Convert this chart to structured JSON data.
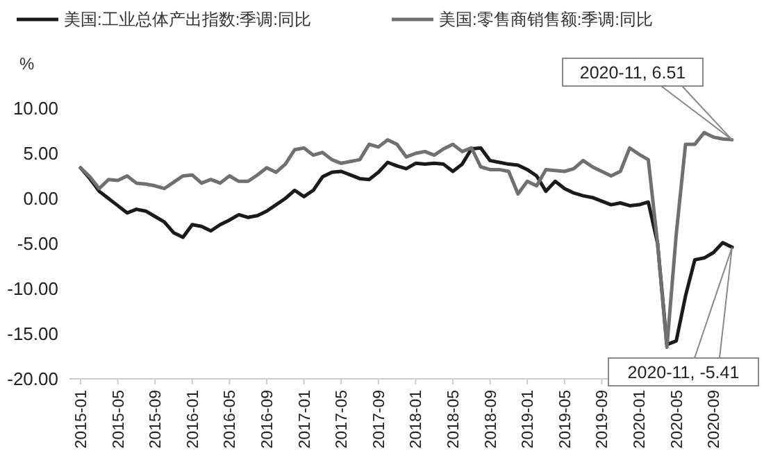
{
  "chart_data": {
    "type": "line",
    "ylabel": "%",
    "legend": "top left",
    "grid": false,
    "marker": "none",
    "line_style": "solid",
    "categories": [
      "2015-01",
      null,
      null,
      null,
      "2015-05",
      null,
      null,
      null,
      "2015-09",
      null,
      null,
      null,
      "2016-01",
      null,
      null,
      null,
      "2016-05",
      null,
      null,
      null,
      "2016-09",
      null,
      null,
      null,
      "2017-01",
      null,
      null,
      null,
      "2017-05",
      null,
      null,
      null,
      "2017-09",
      null,
      null,
      null,
      "2018-01",
      null,
      null,
      null,
      "2018-05",
      null,
      null,
      null,
      "2018-09",
      null,
      null,
      null,
      "2019-01",
      null,
      null,
      null,
      "2019-05",
      null,
      null,
      null,
      "2019-09",
      null,
      null,
      null,
      "2020-01",
      null,
      null,
      null,
      "2020-05",
      null,
      null,
      null,
      "2020-09",
      null,
      null
    ],
    "ylim": [
      -20,
      10
    ],
    "yticks": [
      {
        "value": -20,
        "label": "-20.00"
      },
      {
        "value": -15,
        "label": "-15.00"
      },
      {
        "value": -10,
        "label": "-10.00"
      },
      {
        "value": -5,
        "label": "-5.00"
      },
      {
        "value": 0,
        "label": "0.00"
      },
      {
        "value": 5,
        "label": "5.00"
      },
      {
        "value": 10,
        "label": "10.00"
      }
    ],
    "series": [
      {
        "name": "美国:工业总体产出指数:季调:同比",
        "color": "#1a1a1a",
        "values": [
          3.4,
          2.2,
          0.8,
          0.0,
          -0.8,
          -1.6,
          -1.2,
          -1.4,
          -2.0,
          -2.6,
          -3.8,
          -4.3,
          -2.9,
          -3.1,
          -3.6,
          -2.9,
          -2.4,
          -1.8,
          -2.1,
          -1.9,
          -1.4,
          -0.7,
          0.0,
          0.9,
          0.2,
          0.9,
          2.4,
          2.9,
          3.0,
          2.6,
          2.2,
          2.1,
          2.9,
          4.0,
          3.6,
          3.3,
          3.9,
          3.8,
          3.9,
          3.8,
          3.0,
          3.8,
          5.5,
          5.6,
          4.2,
          4.0,
          3.8,
          3.7,
          3.2,
          2.5,
          0.8,
          1.9,
          1.1,
          0.6,
          0.3,
          0.1,
          -0.3,
          -0.7,
          -0.5,
          -0.8,
          -0.7,
          -0.4,
          -5.0,
          -16.2,
          -15.8,
          -10.8,
          -6.8,
          -6.6,
          -6.0,
          -4.9,
          -5.41
        ]
      },
      {
        "name": "美国:零售商销售额:季调:同比",
        "color": "#707070",
        "values": [
          3.4,
          2.4,
          1.1,
          2.1,
          2.0,
          2.5,
          1.7,
          1.6,
          1.4,
          1.1,
          1.8,
          2.5,
          2.6,
          1.7,
          2.1,
          1.7,
          2.5,
          1.9,
          1.9,
          2.6,
          3.4,
          2.9,
          3.8,
          5.4,
          5.6,
          4.8,
          5.1,
          4.3,
          3.9,
          4.1,
          4.3,
          6.0,
          5.7,
          6.5,
          6.0,
          4.6,
          5.0,
          5.2,
          4.8,
          5.5,
          6.0,
          5.2,
          5.6,
          3.5,
          3.2,
          3.2,
          3.0,
          0.5,
          1.9,
          1.4,
          3.2,
          3.1,
          3.0,
          3.3,
          4.2,
          3.5,
          3.0,
          2.5,
          3.0,
          5.6,
          4.9,
          4.3,
          -5.0,
          -16.5,
          -4.0,
          6.0,
          6.0,
          7.3,
          6.8,
          6.6,
          6.51
        ]
      }
    ],
    "annotations": [
      "2020-11, 6.51",
      "2020-11, -5.41"
    ]
  }
}
